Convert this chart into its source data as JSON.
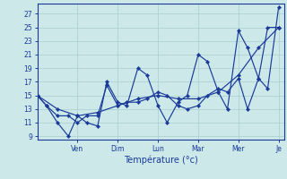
{
  "xlabel": "Température (°c)",
  "background_color": "#cce8e8",
  "grid_color": "#aacece",
  "line_color": "#1a3a9a",
  "ylim": [
    8.5,
    28.5
  ],
  "xlim": [
    0,
    13.5
  ],
  "y_ticks": [
    9,
    11,
    13,
    15,
    17,
    19,
    21,
    23,
    25,
    27
  ],
  "x_tick_positions": [
    2.2,
    4.4,
    6.6,
    8.8,
    11.0,
    13.2
  ],
  "x_tick_labels": [
    "Ven",
    "Dim",
    "Lun",
    "Mar",
    "Mer",
    "Je"
  ],
  "line1_x": [
    0.0,
    0.5,
    1.1,
    1.7,
    2.2,
    2.7,
    3.3,
    3.8,
    4.4,
    4.9,
    5.5,
    6.0,
    6.6,
    7.1,
    7.7,
    8.2,
    8.8,
    9.3,
    9.9,
    10.4,
    11.0,
    11.5,
    12.1,
    12.6,
    13.2
  ],
  "line1_y": [
    15,
    13.5,
    11,
    9,
    12,
    11,
    10.5,
    17,
    14,
    13.5,
    19,
    18,
    13.5,
    11,
    14,
    15,
    21,
    20,
    15.5,
    13,
    24.5,
    22,
    17.5,
    16,
    28
  ],
  "line2_x": [
    0.0,
    0.5,
    1.1,
    1.7,
    2.2,
    2.7,
    3.3,
    3.8,
    4.4,
    4.9,
    5.5,
    6.0,
    6.6,
    7.1,
    7.7,
    8.2,
    8.8,
    9.3,
    9.9,
    10.4,
    11.0,
    11.5,
    12.1,
    12.6,
    13.2
  ],
  "line2_y": [
    15,
    13.5,
    12,
    12,
    11,
    12,
    12,
    16.5,
    13.5,
    14,
    14,
    14.5,
    15.5,
    15,
    13.5,
    13,
    13.5,
    15,
    16,
    15.5,
    17.5,
    13,
    17.5,
    25,
    25
  ],
  "line3_x": [
    0.0,
    1.1,
    2.2,
    3.3,
    4.4,
    5.5,
    6.6,
    7.7,
    8.8,
    9.9,
    11.0,
    12.1,
    13.2
  ],
  "line3_y": [
    15,
    13,
    12,
    12.5,
    13.5,
    14.5,
    15,
    14.5,
    14.5,
    15.5,
    18,
    22,
    25
  ]
}
